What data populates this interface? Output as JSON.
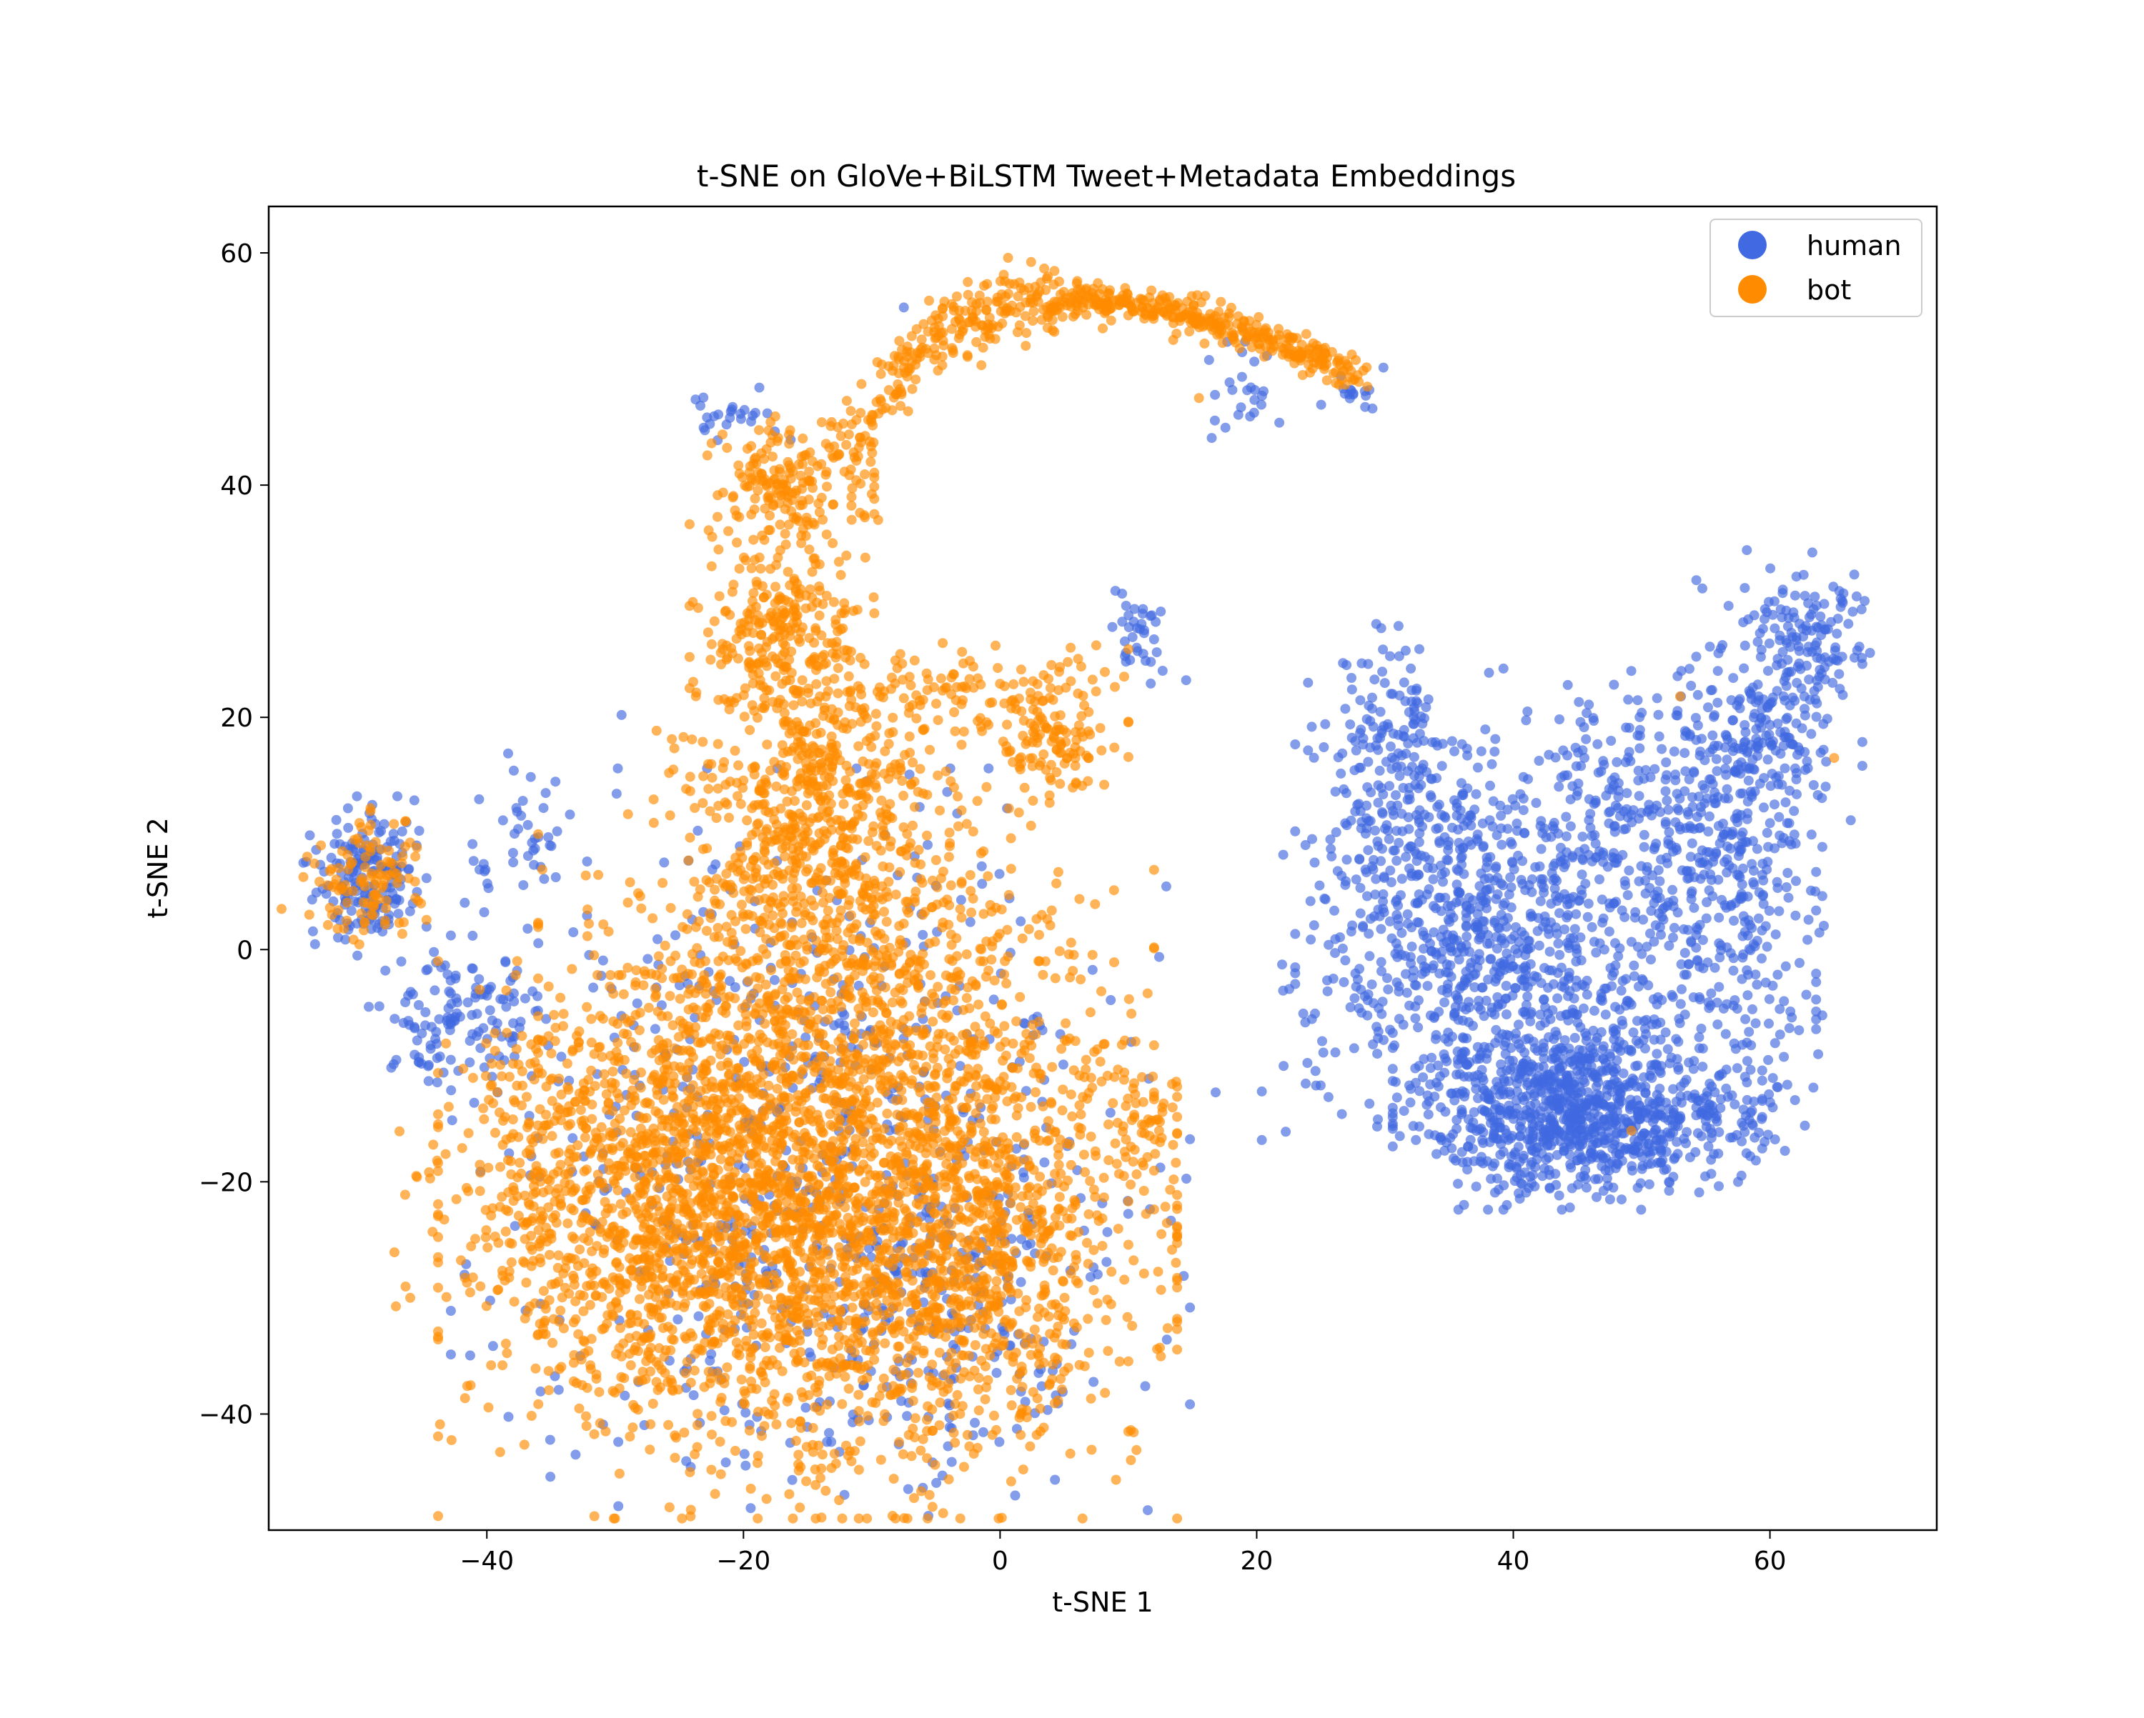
{
  "chart_data": {
    "type": "scatter",
    "title": "t-SNE on GloVe+BiLSTM Tweet+Metadata Embeddings",
    "xlabel": "t-SNE 1",
    "ylabel": "t-SNE 2",
    "xlim": [
      -57,
      73
    ],
    "ylim": [
      -50,
      64
    ],
    "xticks": [
      -40,
      -20,
      0,
      20,
      40,
      60
    ],
    "yticks": [
      -40,
      -20,
      0,
      20,
      40,
      60
    ],
    "xtick_labels": [
      "−40",
      "−20",
      "0",
      "20",
      "40",
      "60"
    ],
    "ytick_labels": [
      "−40",
      "−20",
      "0",
      "20",
      "40",
      "60"
    ],
    "grid": false,
    "legend_position": "top-right",
    "marker_alpha": 0.65,
    "series": [
      {
        "name": "human",
        "color": "#4169e1",
        "clusters": [
          {
            "x": 45,
            "y": -14,
            "sx": 6,
            "sy": 3.5,
            "n": 900
          },
          {
            "x": 42,
            "y": -2,
            "sx": 9,
            "sy": 6,
            "n": 600
          },
          {
            "x": 35,
            "y": 5,
            "sx": 5,
            "sy": 8,
            "n": 350
          },
          {
            "x": 30,
            "y": 15,
            "sx": 2.5,
            "sy": 6,
            "n": 160
          },
          {
            "x": 50,
            "y": 12,
            "sx": 6,
            "sy": 5,
            "n": 280
          },
          {
            "x": 57,
            "y": 5,
            "sx": 3,
            "sy": 7,
            "n": 180
          },
          {
            "x": 60,
            "y": 20,
            "sx": 3,
            "sy": 6,
            "n": 220
          },
          {
            "x": 63,
            "y": 27,
            "sx": 2,
            "sy": 3,
            "n": 90
          },
          {
            "x": 58,
            "y": -13,
            "sx": 2.5,
            "sy": 2,
            "n": 60
          },
          {
            "x": -49.5,
            "y": 6,
            "sx": 2,
            "sy": 3,
            "n": 170
          },
          {
            "x": -42,
            "y": -6,
            "sx": 3,
            "sy": 3,
            "n": 130
          },
          {
            "x": -38,
            "y": 10,
            "sx": 2,
            "sy": 3,
            "n": 40
          },
          {
            "x": -14,
            "y": -18,
            "sx": 12,
            "sy": 14,
            "n": 650
          },
          {
            "x": -4,
            "y": -28,
            "sx": 6,
            "sy": 6,
            "n": 150
          },
          {
            "x": -21,
            "y": 46,
            "sx": 2,
            "sy": 1,
            "n": 25
          },
          {
            "x": 11,
            "y": 27,
            "sx": 1,
            "sy": 2.5,
            "n": 35
          },
          {
            "x": 19,
            "y": 48,
            "sx": 2,
            "sy": 2,
            "n": 25
          },
          {
            "x": 28,
            "y": 48,
            "sx": 1.5,
            "sy": 1,
            "n": 15
          }
        ],
        "points": [
          [
            39.5,
            -22
          ],
          [
            -29.5,
            20.2
          ],
          [
            28.5,
            47.7
          ],
          [
            49.2,
            -15.3
          ],
          [
            14.5,
            23.2
          ],
          [
            61,
            31
          ],
          [
            -5,
            5.5
          ],
          [
            16.8,
            -12.3
          ],
          [
            -7.5,
            55.3
          ],
          [
            23.8,
            9
          ],
          [
            27,
            24.5
          ]
        ]
      },
      {
        "name": "bot",
        "color": "#ff8c00",
        "clusters": [
          {
            "x": -15,
            "y": -25,
            "sx": 12,
            "sy": 10,
            "n": 2300
          },
          {
            "x": -28,
            "y": -19,
            "sx": 8,
            "sy": 7,
            "n": 700
          },
          {
            "x": -12,
            "y": -5,
            "sx": 10,
            "sy": 8,
            "n": 900
          },
          {
            "x": -15,
            "y": 12,
            "sx": 5,
            "sy": 6,
            "n": 550
          },
          {
            "x": -17,
            "y": 27,
            "sx": 3,
            "sy": 4,
            "n": 260
          },
          {
            "x": -17,
            "y": 40,
            "sx": 3,
            "sy": 3,
            "n": 180
          },
          {
            "x": -5,
            "y": 22,
            "sx": 3.5,
            "sy": 2,
            "n": 80
          },
          {
            "x": 4,
            "y": 19,
            "sx": 2.5,
            "sy": 3,
            "n": 140
          },
          {
            "x": -49.5,
            "y": 6,
            "sx": 2,
            "sy": 3,
            "n": 110
          },
          {
            "x": -2,
            "y": -25,
            "sx": 5,
            "sy": 7,
            "n": 350
          },
          {
            "x": 11.5,
            "y": -15,
            "sx": 1.5,
            "sy": 2,
            "n": 45
          }
        ],
        "arc": {
          "t_start": -12,
          "t_end": 28,
          "n": 600
        },
        "points": [
          [
            -54,
            8
          ],
          [
            -56,
            3.5
          ],
          [
            -22.5,
            -44.8
          ],
          [
            -14,
            -45.5
          ],
          [
            -11,
            -44.8
          ],
          [
            53,
            21.8
          ],
          [
            65,
            16.5
          ],
          [
            49.2,
            -15.6
          ],
          [
            -15.5,
            35
          ],
          [
            -9.5,
            37
          ],
          [
            15.5,
            47.5
          ],
          [
            -40.5,
            -29
          ],
          [
            -45.5,
            -19.5
          ],
          [
            -25.5,
            -38
          ],
          [
            -3.5,
            18.8
          ],
          [
            2,
            52
          ],
          [
            8,
            53.5
          ],
          [
            13.5,
            52.5
          ],
          [
            4,
            24.5
          ],
          [
            5.5,
            26
          ]
        ]
      }
    ]
  }
}
